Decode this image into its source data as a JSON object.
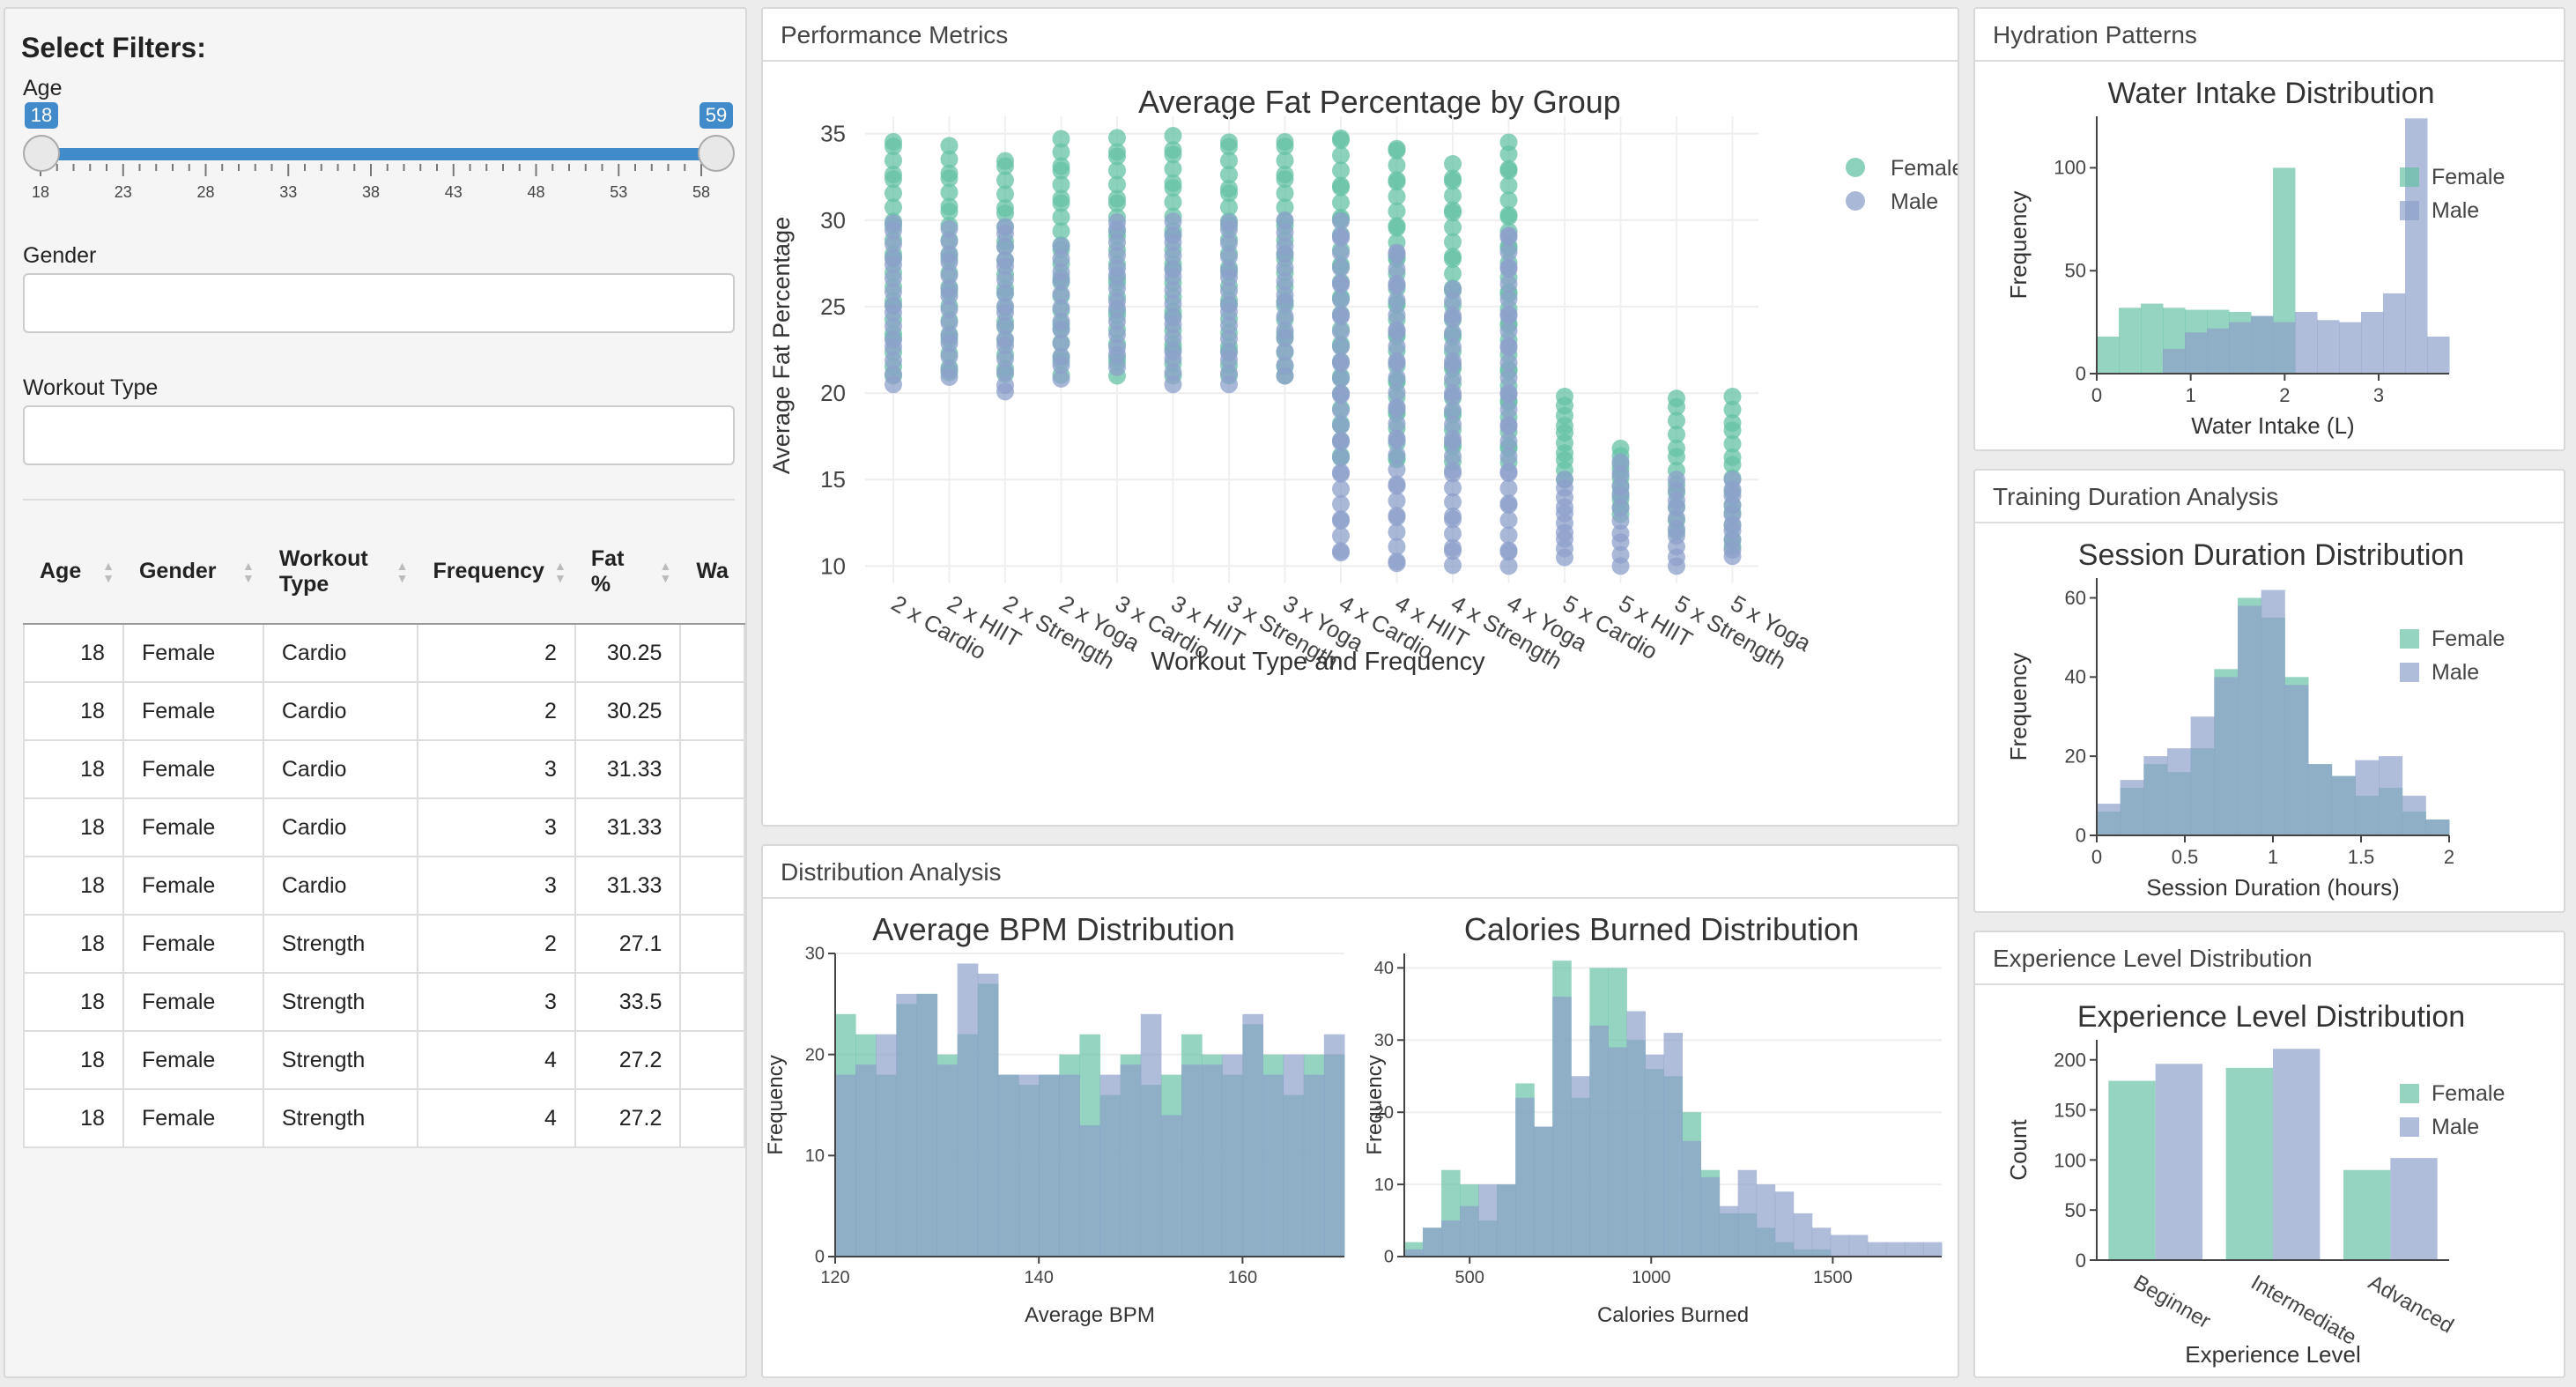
{
  "sidebar": {
    "title": "Select Filters:",
    "age_label": "Age",
    "age_min": "18",
    "age_max": "59",
    "age_ticks": [
      "18",
      "23",
      "28",
      "33",
      "38",
      "43",
      "48",
      "53",
      "58"
    ],
    "gender_label": "Gender",
    "gender_value": "",
    "workout_label": "Workout Type",
    "workout_value": ""
  },
  "table": {
    "headers": [
      {
        "name": "Age",
        "lines": [
          "Age"
        ]
      },
      {
        "name": "Gender",
        "lines": [
          "Gender"
        ]
      },
      {
        "name": "Workout Type",
        "lines": [
          "Workout",
          "Type"
        ]
      },
      {
        "name": "Frequency",
        "lines": [
          "Frequency"
        ]
      },
      {
        "name": "Fat %",
        "lines": [
          "Fat",
          "%"
        ]
      },
      {
        "name": "Wa",
        "lines": [
          "Wa"
        ]
      }
    ],
    "rows": [
      [
        "18",
        "Female",
        "Cardio",
        "2",
        "30.25"
      ],
      [
        "18",
        "Female",
        "Cardio",
        "2",
        "30.25"
      ],
      [
        "18",
        "Female",
        "Cardio",
        "3",
        "31.33"
      ],
      [
        "18",
        "Female",
        "Cardio",
        "3",
        "31.33"
      ],
      [
        "18",
        "Female",
        "Cardio",
        "3",
        "31.33"
      ],
      [
        "18",
        "Female",
        "Strength",
        "2",
        "27.1"
      ],
      [
        "18",
        "Female",
        "Strength",
        "3",
        "33.5"
      ],
      [
        "18",
        "Female",
        "Strength",
        "4",
        "27.2"
      ],
      [
        "18",
        "Female",
        "Strength",
        "4",
        "27.2"
      ]
    ]
  },
  "panels": {
    "performance": "Performance Metrics",
    "distribution": "Distribution Analysis",
    "hydration": "Hydration Patterns",
    "training": "Training Duration Analysis",
    "experience": "Experience Level Distribution"
  },
  "colors": {
    "female": "#66c2a5",
    "male": "#8da0cb"
  },
  "legend": {
    "female": "Female",
    "male": "Male"
  },
  "chart_data": [
    {
      "id": "fat",
      "type": "scatter",
      "title": "Average Fat Percentage by Group",
      "xlabel": "Workout Type and Frequency",
      "ylabel": "Average Fat Percentage",
      "categories": [
        "2 x Cardio",
        "2 x HIIT",
        "2 x Strength",
        "2 x Yoga",
        "3 x Cardio",
        "3 x HIIT",
        "3 x Strength",
        "3 x Yoga",
        "4 x Cardio",
        "4 x HIIT",
        "4 x Strength",
        "4 x Yoga",
        "5 x Cardio",
        "5 x HIIT",
        "5 x Strength",
        "5 x Yoga"
      ],
      "yticks": [
        10,
        15,
        20,
        25,
        30,
        35
      ],
      "ylim": [
        9,
        36
      ],
      "series": [
        {
          "name": "Female",
          "ranges": [
            [
              21,
              34.8
            ],
            [
              21,
              34.3
            ],
            [
              21,
              33.6
            ],
            [
              21,
              34.7
            ],
            [
              21,
              34.8
            ],
            [
              21,
              35
            ],
            [
              21,
              34.7
            ],
            [
              21,
              34.8
            ],
            [
              16,
              35
            ],
            [
              16,
              34.5
            ],
            [
              16,
              33.4
            ],
            [
              16,
              34.5
            ],
            [
              15,
              19.8
            ],
            [
              13,
              16.8
            ],
            [
              12,
              19.8
            ],
            [
              11,
              19.8
            ]
          ]
        },
        {
          "name": "Male",
          "ranges": [
            [
              20.5,
              30
            ],
            [
              20.8,
              29.5
            ],
            [
              20,
              29.8
            ],
            [
              20.8,
              28.5
            ],
            [
              21.5,
              30
            ],
            [
              20.5,
              30
            ],
            [
              20.5,
              30
            ],
            [
              21,
              30
            ],
            [
              10.5,
              30
            ],
            [
              10,
              28.5
            ],
            [
              10,
              26
            ],
            [
              10,
              29.5
            ],
            [
              10.5,
              15
            ],
            [
              10,
              16
            ],
            [
              10,
              15
            ],
            [
              10.5,
              15
            ]
          ]
        }
      ],
      "legend": "top-right"
    },
    {
      "id": "bpm",
      "type": "bar",
      "title": "Average BPM Distribution",
      "xlabel": "Average BPM",
      "ylabel": "Frequency",
      "xlim": [
        120,
        170
      ],
      "xticks": [
        120,
        140,
        160
      ],
      "yticks": [
        0,
        10,
        20,
        30
      ],
      "ylim": [
        0,
        30
      ],
      "series": [
        {
          "name": "Female",
          "values": [
            24,
            22,
            18,
            25,
            26,
            20,
            22,
            27,
            18,
            17,
            18,
            20,
            22,
            16,
            20,
            17,
            18,
            22,
            20,
            18,
            23,
            20,
            16,
            20,
            20
          ]
        },
        {
          "name": "Male",
          "values": [
            18,
            19,
            22,
            26,
            26,
            19,
            29,
            28,
            18,
            18,
            18,
            18,
            13,
            18,
            19,
            24,
            14,
            19,
            19,
            20,
            24,
            18,
            20,
            18,
            22
          ]
        }
      ]
    },
    {
      "id": "cal",
      "type": "bar",
      "title": "Calories Burned Distribution",
      "xlabel": "Calories Burned",
      "ylabel": "Frequency",
      "xlim": [
        320,
        1800
      ],
      "xticks": [
        500,
        1000,
        1500
      ],
      "yticks": [
        0,
        10,
        20,
        30,
        40
      ],
      "ylim": [
        0,
        42
      ],
      "series": [
        {
          "name": "Female",
          "values": [
            2,
            4,
            12,
            10,
            5,
            10,
            24,
            18,
            41,
            22,
            40,
            40,
            30,
            26,
            25,
            20,
            12,
            6,
            6,
            4,
            2,
            1,
            1,
            0,
            0,
            0,
            0,
            0,
            0
          ]
        },
        {
          "name": "Male",
          "values": [
            1,
            4,
            5,
            7,
            10,
            10,
            22,
            18,
            36,
            25,
            32,
            29,
            34,
            28,
            31,
            16,
            11,
            7,
            12,
            10,
            9,
            6,
            4,
            3,
            3,
            2,
            2,
            2,
            2
          ]
        }
      ]
    },
    {
      "id": "water",
      "type": "bar",
      "title": "Water Intake Distribution",
      "xlabel": "Water Intake (L)",
      "ylabel": "Frequency",
      "xlim": [
        0,
        3.75
      ],
      "xticks": [
        0,
        1,
        2,
        3
      ],
      "yticks": [
        0,
        50,
        100
      ],
      "ylim": [
        0,
        125
      ],
      "series": [
        {
          "name": "Female",
          "values": [
            18,
            32,
            34,
            32,
            31,
            31,
            30,
            28,
            100,
            0,
            0,
            0,
            0,
            0,
            0,
            0
          ]
        },
        {
          "name": "Male",
          "values": [
            0,
            0,
            0,
            12,
            20,
            22,
            25,
            28,
            25,
            30,
            26,
            25,
            30,
            39,
            124,
            18
          ]
        }
      ]
    },
    {
      "id": "session",
      "type": "bar",
      "title": "Session Duration Distribution",
      "xlabel": "Session Duration (hours)",
      "ylabel": "Frequency",
      "xlim": [
        0,
        2
      ],
      "xticks": [
        0,
        0.5,
        1,
        1.5,
        2
      ],
      "yticks": [
        0,
        20,
        40,
        60
      ],
      "ylim": [
        0,
        65
      ],
      "series": [
        {
          "name": "Female",
          "values": [
            6,
            12,
            18,
            16,
            22,
            42,
            60,
            55,
            40,
            18,
            15,
            10,
            12,
            6,
            4
          ]
        },
        {
          "name": "Male",
          "values": [
            8,
            14,
            20,
            22,
            30,
            40,
            58,
            62,
            38,
            18,
            15,
            19,
            20,
            10,
            4
          ]
        }
      ]
    },
    {
      "id": "experience",
      "type": "bar",
      "title": "Experience Level Distribution",
      "xlabel": "Experience Level",
      "ylabel": "Count",
      "categories": [
        "Beginner",
        "Intermediate",
        "Advanced"
      ],
      "yticks": [
        0,
        50,
        100,
        150,
        200
      ],
      "ylim": [
        0,
        220
      ],
      "series": [
        {
          "name": "Female",
          "values": [
            179,
            192,
            90
          ]
        },
        {
          "name": "Male",
          "values": [
            196,
            211,
            102
          ]
        }
      ]
    }
  ]
}
